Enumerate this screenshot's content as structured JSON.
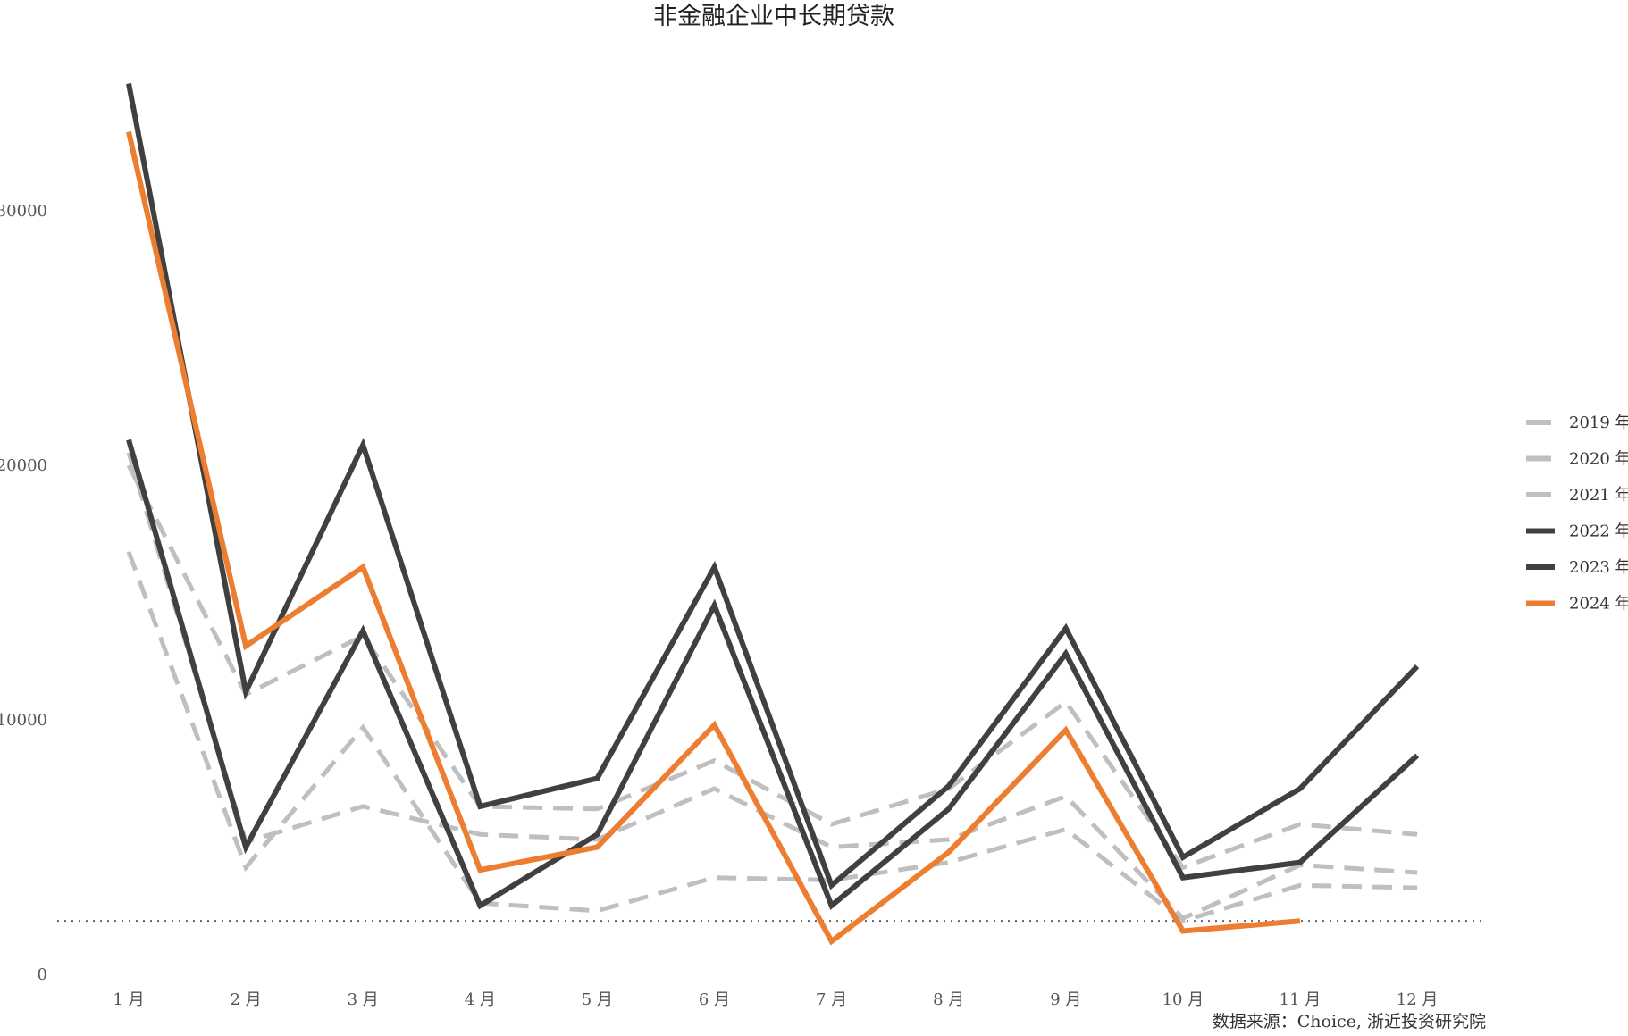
{
  "chart_data": {
    "type": "line",
    "title": "非金融企业中长期贷款",
    "xlabel": "",
    "ylabel": "",
    "categories": [
      "1 月",
      "2 月",
      "3 月",
      "4 月",
      "5 月",
      "6 月",
      "7 月",
      "8 月",
      "9 月",
      "10 月",
      "11 月",
      "12 月"
    ],
    "ylim": [
      0,
      35000
    ],
    "yticks": [
      0,
      10000,
      20000,
      30000
    ],
    "grid": false,
    "legend_position": "right",
    "reference_line": {
      "value": 2100,
      "style": "dotted"
    },
    "series": [
      {
        "name": "2019 年",
        "style": "dashed",
        "color": "#bfbfbf",
        "values": [
          16600,
          4200,
          9700,
          2800,
          2500,
          3800,
          3700,
          4400,
          5700,
          2100,
          3500,
          3400
        ]
      },
      {
        "name": "2020 年",
        "style": "dashed",
        "color": "#bfbfbf",
        "values": [
          20500,
          5200,
          6600,
          5500,
          5300,
          7300,
          5000,
          5300,
          7000,
          2200,
          4300,
          4000
        ]
      },
      {
        "name": "2021 年",
        "style": "dashed",
        "color": "#bfbfbf",
        "values": [
          20000,
          11000,
          13300,
          6600,
          6500,
          8400,
          5900,
          7300,
          10700,
          4200,
          5900,
          5500
        ]
      },
      {
        "name": "2022 年",
        "style": "solid",
        "color": "#404040",
        "values": [
          21000,
          5000,
          13500,
          2700,
          5500,
          14500,
          2700,
          6500,
          12600,
          3800,
          4400,
          8600
        ]
      },
      {
        "name": "2023 年",
        "style": "solid",
        "color": "#404040",
        "values": [
          35000,
          11100,
          20800,
          6600,
          7700,
          16000,
          3500,
          7400,
          13600,
          4600,
          7300,
          12100
        ]
      },
      {
        "name": "2024 年",
        "style": "solid",
        "color": "#ed7d31",
        "values": [
          33100,
          12900,
          16000,
          4100,
          5000,
          9800,
          1300,
          4800,
          9600,
          1700,
          2100,
          null
        ]
      }
    ]
  },
  "source_text": "数据来源：Choice, 浙近投资研究院"
}
